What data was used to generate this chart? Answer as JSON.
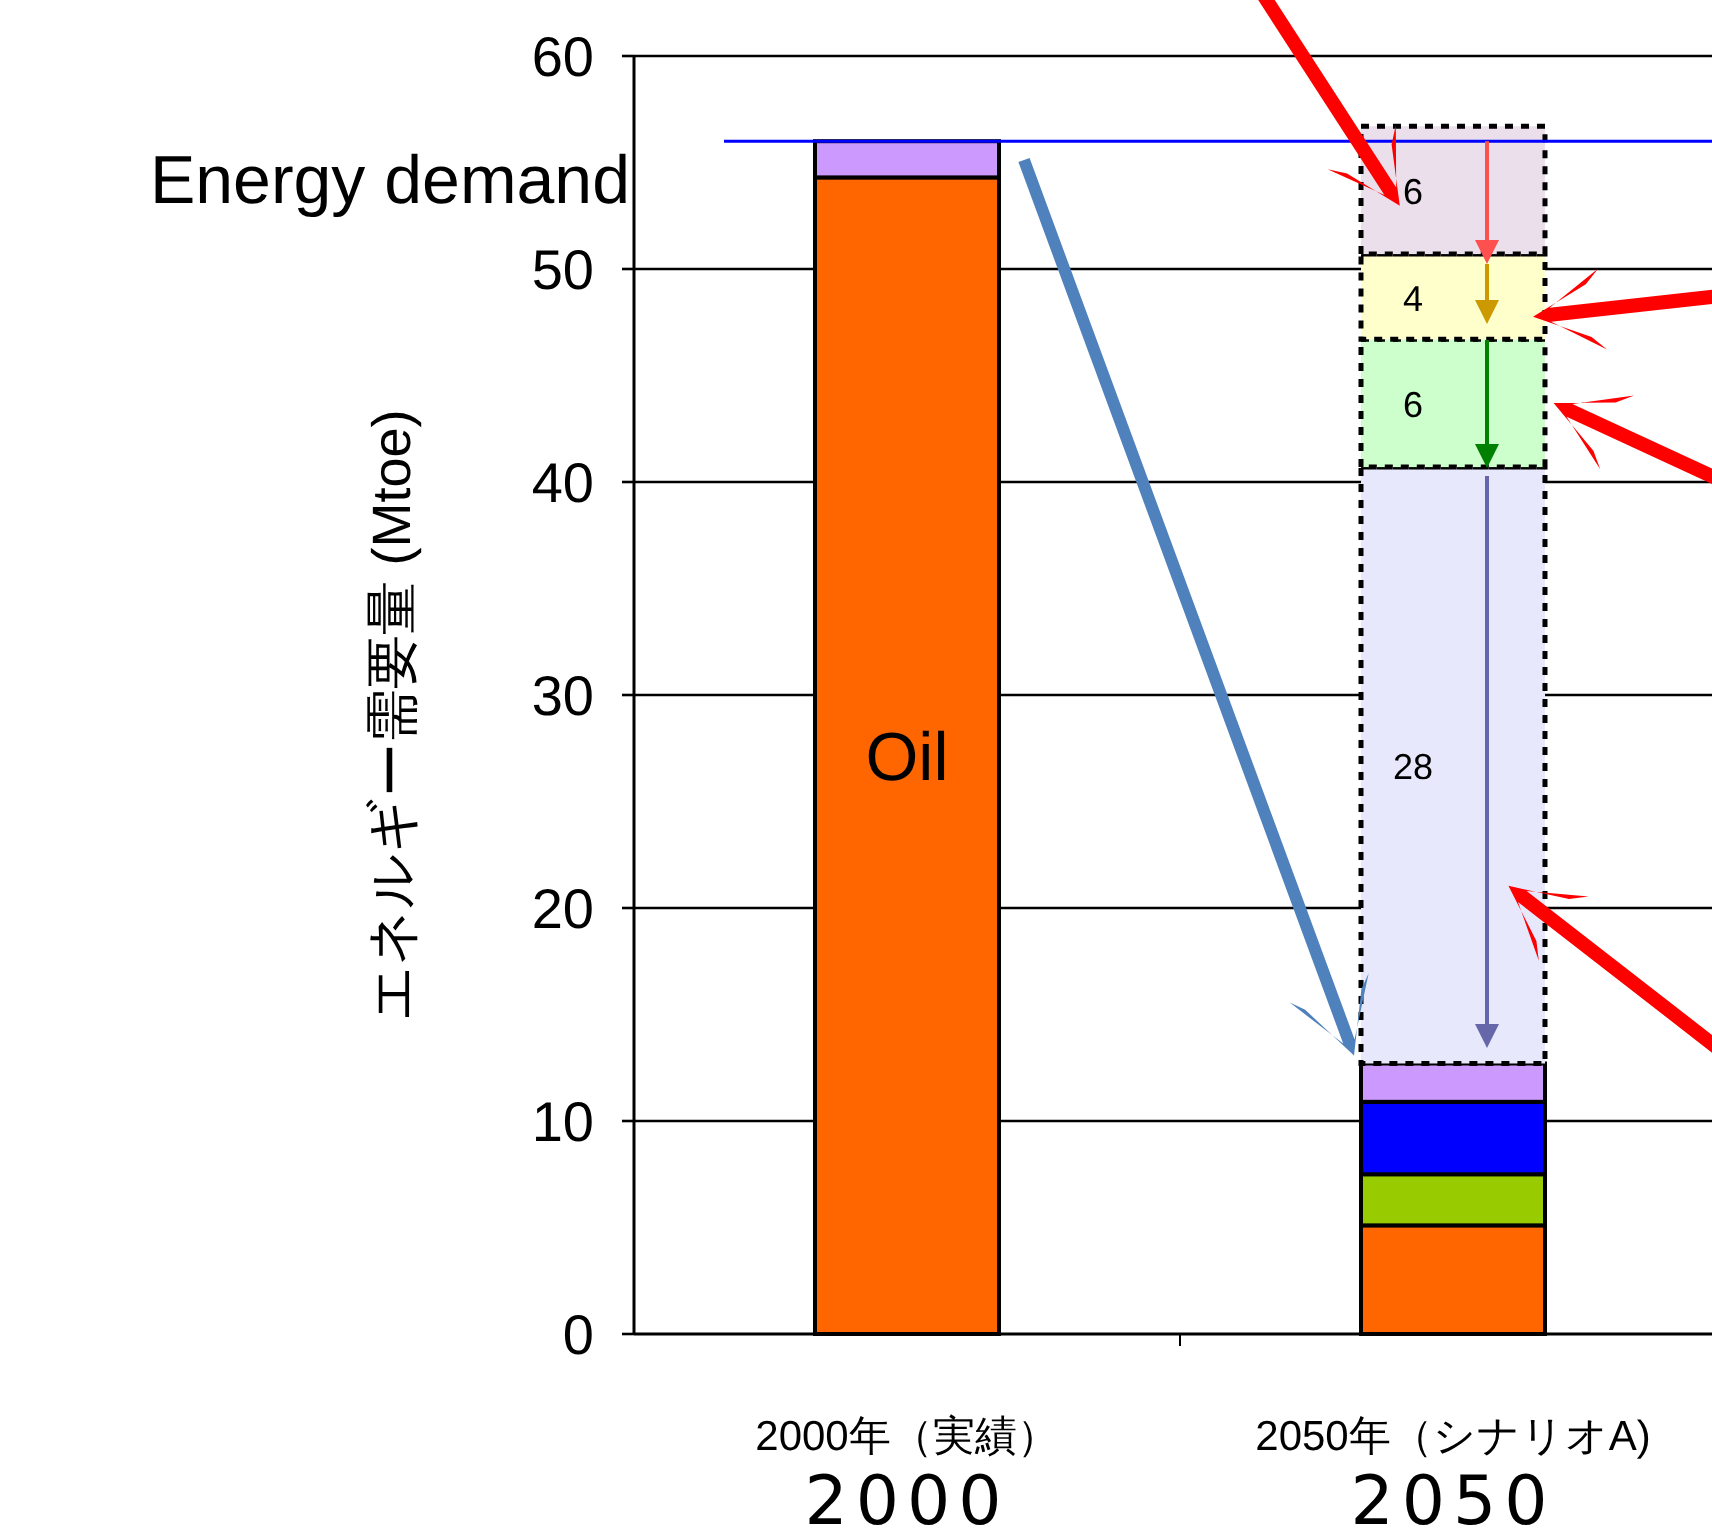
{
  "chart_data": {
    "type": "bar",
    "stacked": true,
    "ylabel": "エネルギー需要量 (Mtoe)",
    "categories": [
      "2000年（実績）",
      "2050年（シナリオA)"
    ],
    "series": [
      {
        "name": "Oil",
        "color": "#ff6600",
        "values": [
          54.3,
          5.1
        ]
      },
      {
        "color": "#99cc00",
        "values": [
          null,
          2.4
        ]
      },
      {
        "color": "#0000ff",
        "values": [
          null,
          3.4
        ]
      },
      {
        "color": "#cc99ff",
        "values": [
          1.7,
          1.8
        ]
      },
      {
        "color": "#e8e8fc",
        "values": [
          null,
          28
        ],
        "value_labels": [
          null,
          "28"
        ],
        "line_style": "dotted"
      },
      {
        "color": "#ccffcc",
        "values": [
          null,
          6
        ],
        "value_labels": [
          null,
          "6"
        ],
        "line_style": "dotted"
      },
      {
        "color": "#ffffcc",
        "values": [
          null,
          4
        ],
        "value_labels": [
          null,
          "4"
        ],
        "line_style": "dotted"
      },
      {
        "color": "#eadfea",
        "values": [
          null,
          6
        ],
        "value_labels": [
          null,
          "6"
        ],
        "line_style": "dotted"
      }
    ],
    "ylim": [
      0,
      60
    ],
    "yticks": [
      0,
      10,
      20,
      30,
      40,
      50,
      60
    ],
    "grid": "y",
    "ref_lines": [
      {
        "axis": "y",
        "value": 56,
        "label": "Energy demand",
        "color": "#0000ff"
      }
    ],
    "annotations": [
      "2000",
      "2050"
    ]
  }
}
